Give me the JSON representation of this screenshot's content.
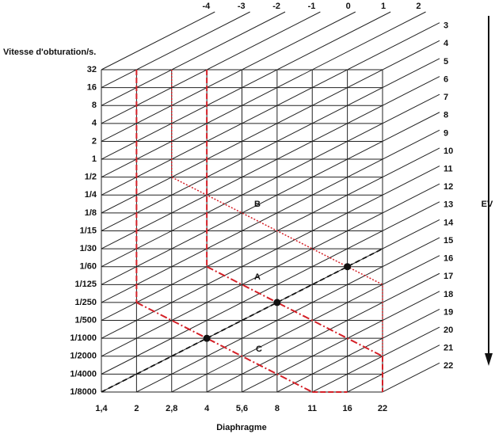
{
  "axis_titles": {
    "shutter": "Vitesse d'obturation/s.",
    "aperture": "Diaphragme",
    "ev": "EV"
  },
  "shutter_labels": [
    "32",
    "16",
    "8",
    "4",
    "2",
    "1",
    "1/2",
    "1/4",
    "1/8",
    "1/15",
    "1/30",
    "1/60",
    "1/125",
    "1/250",
    "1/500",
    "1/1000",
    "1/2000",
    "1/4000",
    "1/8000"
  ],
  "aperture_labels": [
    "1,4",
    "2",
    "2,8",
    "4",
    "5,6",
    "8",
    "11",
    "16",
    "22"
  ],
  "ev_top_labels": [
    "-4",
    "-3",
    "-2",
    "-1",
    "0",
    "1",
    "2"
  ],
  "ev_right_labels": [
    "3",
    "4",
    "5",
    "6",
    "7",
    "8",
    "9",
    "10",
    "11",
    "12",
    "13",
    "14",
    "15",
    "16",
    "17",
    "18",
    "19",
    "20",
    "21",
    "22"
  ],
  "program_labels": {
    "a": "A",
    "b": "B",
    "c": "C"
  }
}
